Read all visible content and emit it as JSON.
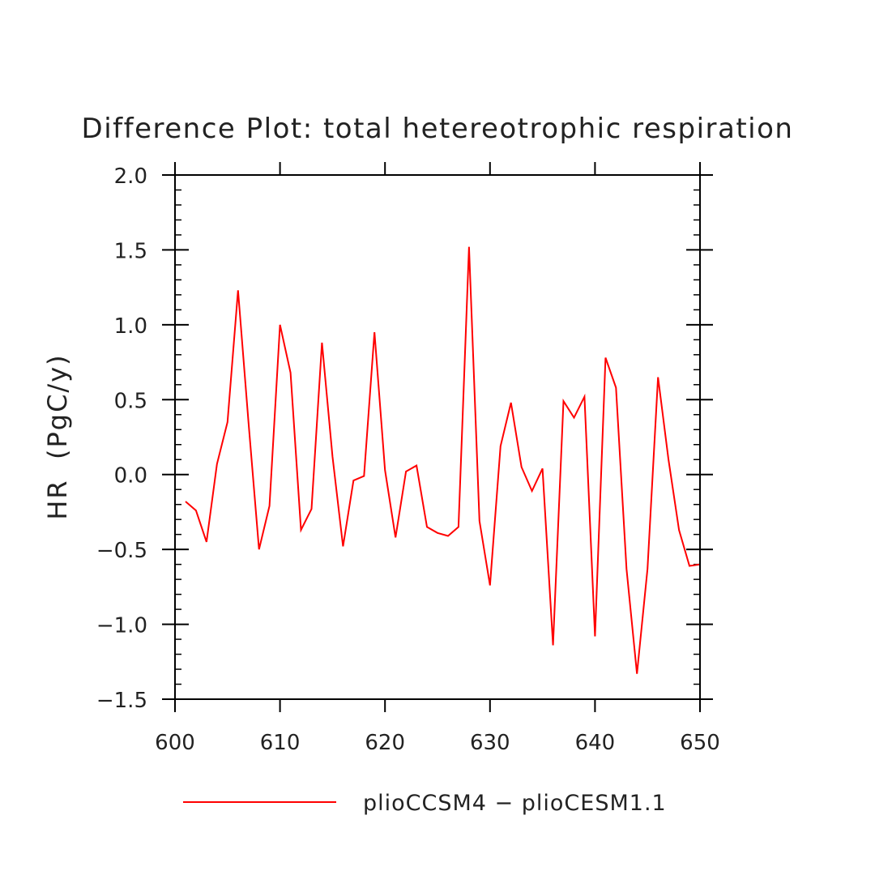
{
  "chart_data": {
    "type": "line",
    "title": "Difference Plot: total hetereotrophic respiration",
    "xlabel": "",
    "ylabel": "HR  (PgC/y)",
    "xlim": [
      600,
      650
    ],
    "ylim": [
      -1.5,
      2.0
    ],
    "x_ticks": [
      600,
      610,
      620,
      630,
      640,
      650
    ],
    "x_tick_labels": [
      "600",
      "610",
      "620",
      "630",
      "640",
      "650"
    ],
    "y_ticks": [
      -1.5,
      -1.0,
      -0.5,
      0.0,
      0.5,
      1.0,
      1.5,
      2.0
    ],
    "y_tick_labels": [
      "−1.5",
      "−1.0",
      "−0.5",
      "0.0",
      "0.5",
      "1.0",
      "1.5",
      "2.0"
    ],
    "grid": false,
    "legend_position": "bottom",
    "series": [
      {
        "name": "plioCCSM4 − plioCESM1.1",
        "color": "#ff0000",
        "x": [
          601,
          602,
          603,
          604,
          605,
          606,
          607,
          608,
          609,
          610,
          611,
          612,
          613,
          614,
          615,
          616,
          617,
          618,
          619,
          620,
          621,
          622,
          623,
          624,
          625,
          626,
          627,
          628,
          629,
          630,
          631,
          632,
          633,
          634,
          635,
          636,
          637,
          638,
          639,
          640,
          641,
          642,
          643,
          644,
          645,
          646,
          647,
          648,
          649,
          650
        ],
        "y": [
          -0.18,
          -0.24,
          -0.45,
          0.07,
          0.35,
          1.23,
          0.35,
          -0.5,
          -0.21,
          1.0,
          0.68,
          -0.37,
          -0.23,
          0.88,
          0.12,
          -0.48,
          -0.04,
          -0.01,
          0.95,
          0.03,
          -0.42,
          0.02,
          0.06,
          -0.35,
          -0.39,
          -0.41,
          -0.35,
          1.52,
          -0.31,
          -0.74,
          0.19,
          0.48,
          0.05,
          -0.11,
          0.04,
          -1.14,
          0.49,
          0.38,
          0.52,
          -1.08,
          0.78,
          0.58,
          -0.63,
          -1.33,
          -0.63,
          0.65,
          0.1,
          -0.37,
          -0.61,
          -0.6
        ]
      }
    ]
  }
}
